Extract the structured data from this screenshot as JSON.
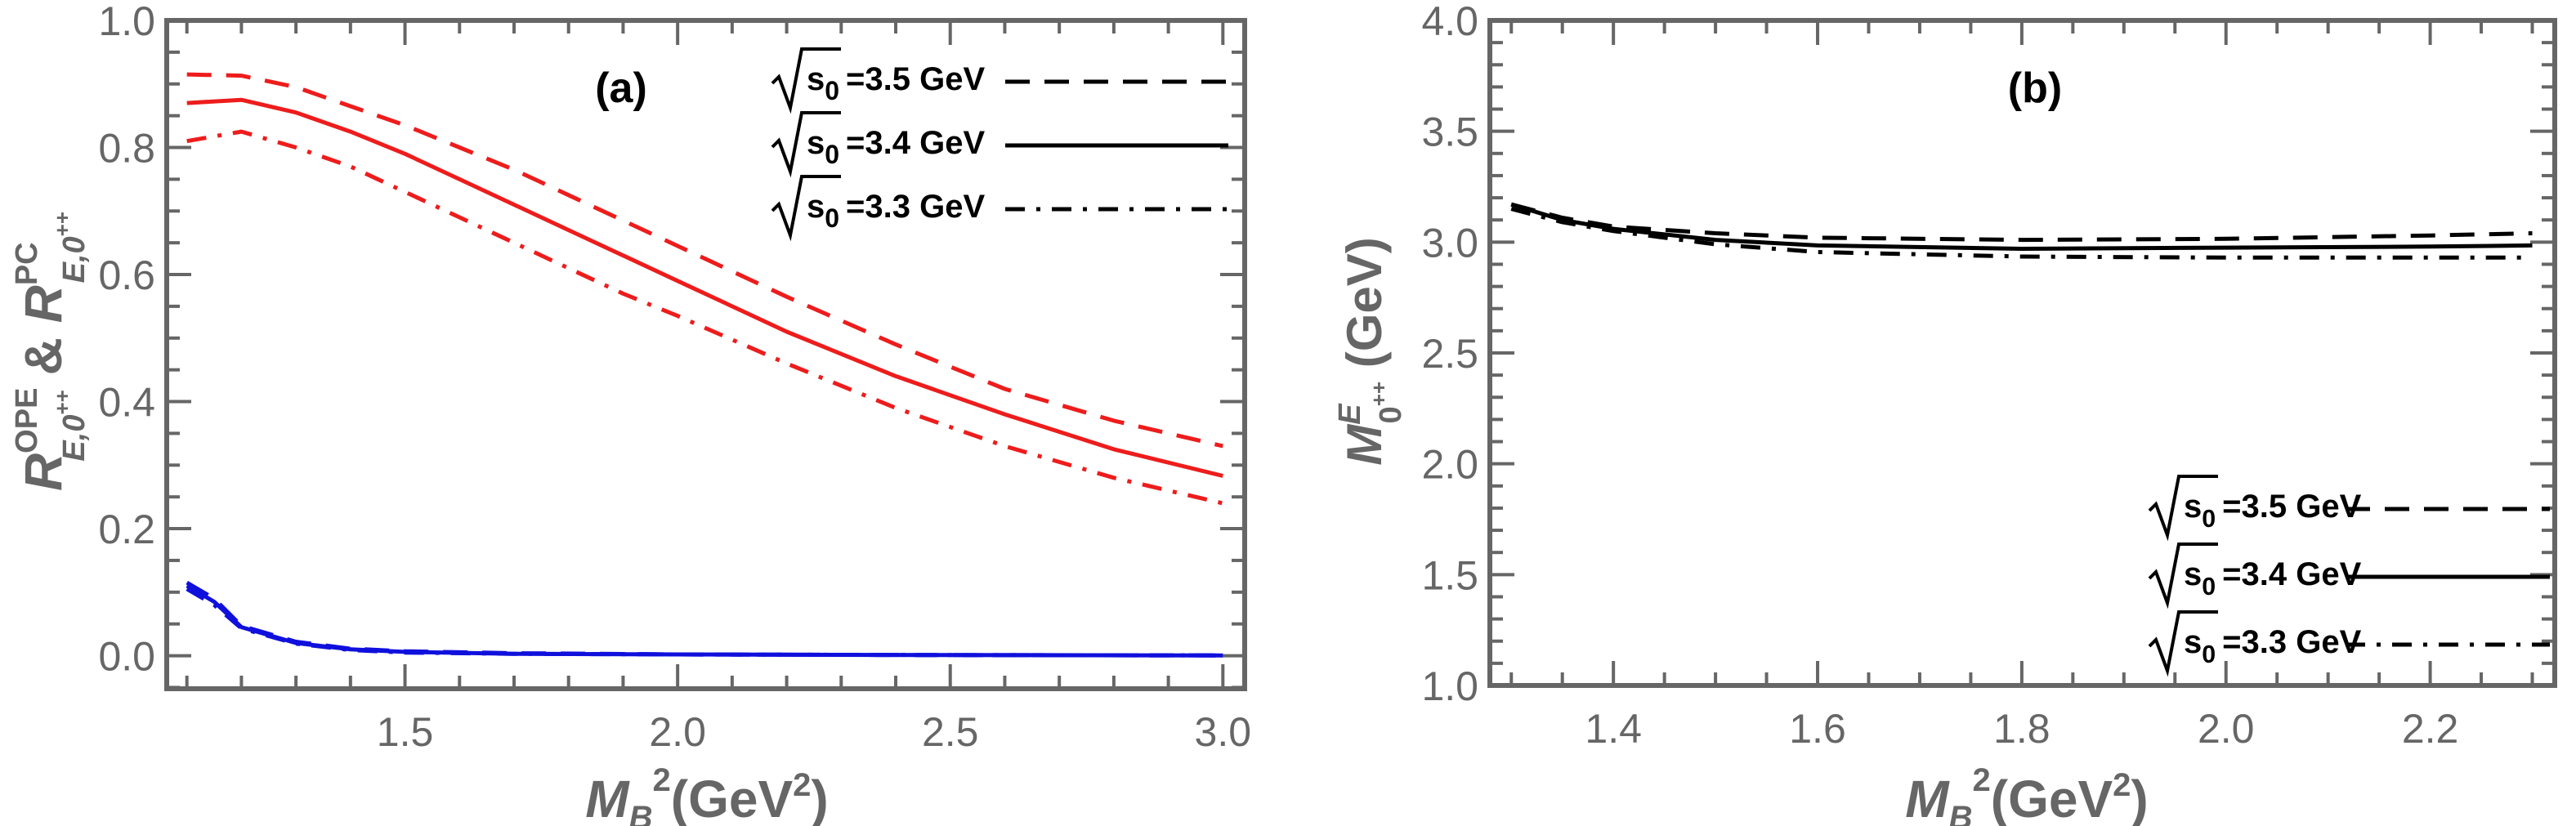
{
  "colors": {
    "red": "#ee1c1c",
    "blue": "#1010dd",
    "black": "#000000",
    "axis": "#666666"
  },
  "chart_data": [
    {
      "type": "line",
      "panel_label": "(a)",
      "xlabel": {
        "main": "M",
        "sub": "B",
        "sup": "2",
        "unit": "(GeV",
        "unit_sup": "2",
        "close": ")"
      },
      "ylabel": {
        "r1": "R",
        "sup1": "OPE",
        "sub1": "E,0",
        "subsup1": "++",
        "amp": " & ",
        "r2": "R",
        "sup2": "PC",
        "sub2": "E,0",
        "subsup2": "++"
      },
      "xlim": [
        1.063,
        3.04
      ],
      "ylim": [
        -0.052,
        1.0
      ],
      "xticks": [
        "1.5",
        "2.0",
        "2.5",
        "3.0"
      ],
      "yticks": [
        "0.0",
        "0.2",
        "0.4",
        "0.6",
        "0.8",
        "1.0"
      ],
      "grid": false,
      "legend_placement": "top-right",
      "legend": [
        {
          "prefix": "s",
          "sub": "0",
          "text": "=3.5 GeV",
          "style": "dashed"
        },
        {
          "prefix": "s",
          "sub": "0",
          "text": "=3.4 GeV",
          "style": "solid"
        },
        {
          "prefix": "s",
          "sub": "0",
          "text": "=3.3 GeV",
          "style": "dashdot"
        }
      ],
      "series": [
        {
          "s0": "3.5 GeV",
          "quantity": "PC",
          "style": "dashed",
          "color": "#ee1c1c",
          "x": [
            1.1,
            1.2,
            1.3,
            1.4,
            1.5,
            1.6,
            1.7,
            1.8,
            1.9,
            2.0,
            2.2,
            2.4,
            2.6,
            2.8,
            3.0
          ],
          "y": [
            0.915,
            0.913,
            0.895,
            0.865,
            0.835,
            0.8,
            0.765,
            0.725,
            0.685,
            0.645,
            0.565,
            0.49,
            0.42,
            0.37,
            0.33
          ]
        },
        {
          "s0": "3.4 GeV",
          "quantity": "PC",
          "style": "solid",
          "color": "#ee1c1c",
          "x": [
            1.1,
            1.2,
            1.3,
            1.4,
            1.5,
            1.6,
            1.7,
            1.8,
            1.9,
            2.0,
            2.2,
            2.4,
            2.6,
            2.8,
            3.0
          ],
          "y": [
            0.87,
            0.875,
            0.855,
            0.825,
            0.79,
            0.75,
            0.71,
            0.67,
            0.63,
            0.59,
            0.51,
            0.44,
            0.38,
            0.325,
            0.283
          ]
        },
        {
          "s0": "3.3 GeV",
          "quantity": "PC",
          "style": "dashdot",
          "color": "#ee1c1c",
          "x": [
            1.1,
            1.2,
            1.3,
            1.4,
            1.5,
            1.6,
            1.7,
            1.8,
            1.9,
            2.0,
            2.2,
            2.4,
            2.6,
            2.8,
            3.0
          ],
          "y": [
            0.81,
            0.825,
            0.8,
            0.77,
            0.73,
            0.69,
            0.65,
            0.61,
            0.57,
            0.535,
            0.46,
            0.39,
            0.33,
            0.28,
            0.24
          ]
        },
        {
          "s0": "3.5 GeV",
          "quantity": "OPE",
          "style": "dashed",
          "color": "#1010dd",
          "x": [
            1.1,
            1.15,
            1.2,
            1.3,
            1.4,
            1.5,
            1.7,
            2.0,
            2.5,
            3.0
          ],
          "y": [
            0.115,
            0.09,
            0.047,
            0.022,
            0.011,
            0.007,
            0.004,
            0.002,
            0.001,
            0.0005
          ]
        },
        {
          "s0": "3.4 GeV",
          "quantity": "OPE",
          "style": "solid",
          "color": "#1010dd",
          "x": [
            1.1,
            1.15,
            1.2,
            1.3,
            1.4,
            1.5,
            1.7,
            2.0,
            2.5,
            3.0
          ],
          "y": [
            0.11,
            0.085,
            0.045,
            0.02,
            0.01,
            0.006,
            0.003,
            0.002,
            0.001,
            0.0005
          ]
        },
        {
          "s0": "3.3 GeV",
          "quantity": "OPE",
          "style": "dashdot",
          "color": "#1010dd",
          "x": [
            1.1,
            1.15,
            1.2,
            1.3,
            1.4,
            1.5,
            1.7,
            2.0,
            2.5,
            3.0
          ],
          "y": [
            0.105,
            0.08,
            0.043,
            0.019,
            0.009,
            0.005,
            0.003,
            0.002,
            0.001,
            0.0005
          ]
        }
      ]
    },
    {
      "type": "line",
      "panel_label": "(b)",
      "xlabel": {
        "main": "M",
        "sub": "B",
        "sup": "2",
        "unit": "(GeV",
        "unit_sup": "2",
        "close": ")"
      },
      "ylabel": {
        "m": "M",
        "sup": "E",
        "sub": "0",
        "subsup": "++",
        "unit": " (GeV)"
      },
      "xlim": [
        1.279,
        2.322
      ],
      "ylim": [
        1.0,
        4.0
      ],
      "xticks": [
        "1.4",
        "1.6",
        "1.8",
        "2.0",
        "2.2"
      ],
      "yticks": [
        "1.0",
        "1.5",
        "2.0",
        "2.5",
        "3.0",
        "3.5",
        "4.0"
      ],
      "grid": false,
      "legend_placement": "bottom-right",
      "legend": [
        {
          "prefix": "s",
          "sub": "0",
          "text": "=3.5 GeV",
          "style": "dashed"
        },
        {
          "prefix": "s",
          "sub": "0",
          "text": "=3.4 GeV",
          "style": "solid"
        },
        {
          "prefix": "s",
          "sub": "0",
          "text": "=3.3 GeV",
          "style": "dashdot"
        }
      ],
      "series": [
        {
          "s0": "3.5 GeV",
          "style": "dashed",
          "color": "#000000",
          "x": [
            1.3,
            1.35,
            1.4,
            1.5,
            1.6,
            1.8,
            2.0,
            2.2,
            2.3
          ],
          "y": [
            3.17,
            3.11,
            3.07,
            3.04,
            3.02,
            3.01,
            3.015,
            3.03,
            3.04
          ]
        },
        {
          "s0": "3.4 GeV",
          "style": "solid",
          "color": "#000000",
          "x": [
            1.3,
            1.35,
            1.4,
            1.5,
            1.6,
            1.8,
            2.0,
            2.2,
            2.3
          ],
          "y": [
            3.17,
            3.1,
            3.06,
            3.01,
            2.985,
            2.97,
            2.975,
            2.98,
            2.985
          ]
        },
        {
          "s0": "3.3 GeV",
          "style": "dashdot",
          "color": "#000000",
          "x": [
            1.3,
            1.35,
            1.4,
            1.5,
            1.6,
            1.8,
            2.0,
            2.2,
            2.3
          ],
          "y": [
            3.15,
            3.09,
            3.05,
            2.99,
            2.955,
            2.935,
            2.93,
            2.93,
            2.93
          ]
        }
      ]
    }
  ]
}
